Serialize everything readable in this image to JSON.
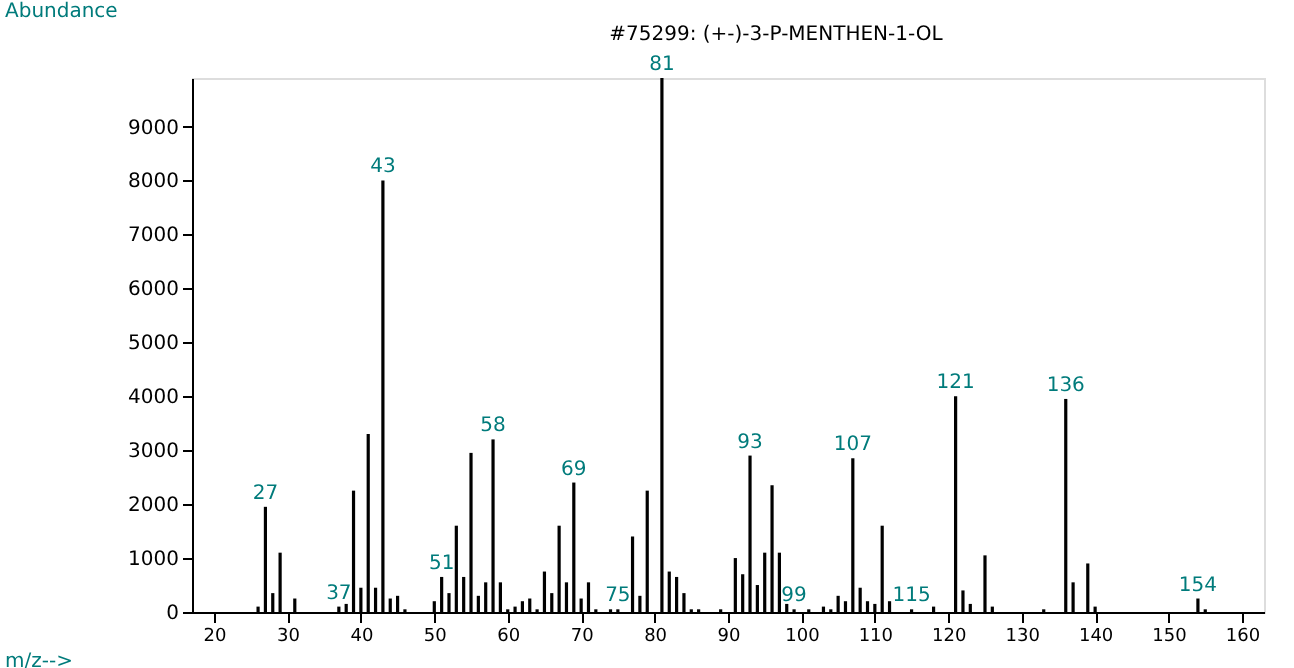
{
  "chart_data": {
    "type": "bar",
    "title": "#75299: (+-)-3-P-MENTHEN-1-OL",
    "xlabel": "m/z-->",
    "ylabel": "Abundance",
    "color": "#000000",
    "x": [
      26,
      27,
      28,
      29,
      31,
      37,
      38,
      39,
      40,
      41,
      42,
      43,
      44,
      45,
      46,
      50,
      51,
      52,
      53,
      54,
      55,
      56,
      57,
      58,
      59,
      60,
      61,
      62,
      63,
      64,
      65,
      66,
      67,
      68,
      69,
      70,
      71,
      72,
      74,
      75,
      77,
      78,
      79,
      81,
      82,
      83,
      84,
      85,
      86,
      89,
      91,
      92,
      93,
      94,
      95,
      96,
      97,
      98,
      99,
      101,
      103,
      104,
      105,
      106,
      107,
      108,
      109,
      110,
      111,
      112,
      115,
      118,
      121,
      122,
      123,
      125,
      126,
      133,
      136,
      137,
      139,
      140,
      154,
      155
    ],
    "values": [
      100,
      1950,
      350,
      1100,
      250,
      100,
      150,
      2250,
      450,
      3300,
      450,
      8000,
      250,
      300,
      50,
      200,
      650,
      350,
      1600,
      650,
      2950,
      300,
      550,
      3200,
      550,
      50,
      100,
      200,
      250,
      50,
      750,
      350,
      1600,
      550,
      2400,
      250,
      550,
      50,
      50,
      50,
      1400,
      300,
      2250,
      9900,
      750,
      650,
      350,
      50,
      50,
      50,
      1000,
      700,
      2900,
      500,
      1100,
      2350,
      1100,
      150,
      50,
      50,
      100,
      50,
      300,
      200,
      2850,
      450,
      200,
      150,
      1600,
      200,
      50,
      100,
      4000,
      400,
      150,
      1050,
      100,
      50,
      3950,
      550,
      900,
      100,
      250,
      50
    ],
    "annotations": [
      {
        "text": "27",
        "x": 27,
        "y": 1950
      },
      {
        "text": "37",
        "x": 37,
        "y": 100
      },
      {
        "text": "43",
        "x": 43,
        "y": 8000
      },
      {
        "text": "51",
        "x": 51,
        "y": 650
      },
      {
        "text": "58",
        "x": 58,
        "y": 3200
      },
      {
        "text": "69",
        "x": 69,
        "y": 2400
      },
      {
        "text": "75",
        "x": 75,
        "y": 50
      },
      {
        "text": "81",
        "x": 81,
        "y": 9900
      },
      {
        "text": "93",
        "x": 93,
        "y": 2900
      },
      {
        "text": "99",
        "x": 99,
        "y": 50
      },
      {
        "text": "107",
        "x": 107,
        "y": 2850
      },
      {
        "text": "115",
        "x": 115,
        "y": 50
      },
      {
        "text": "121",
        "x": 121,
        "y": 4000
      },
      {
        "text": "136",
        "x": 136,
        "y": 3950
      },
      {
        "text": "154",
        "x": 154,
        "y": 250
      }
    ],
    "xlim": [
      17,
      163
    ],
    "ylim": [
      0,
      9900
    ],
    "xticks": [
      20,
      30,
      40,
      50,
      60,
      70,
      80,
      90,
      100,
      110,
      120,
      130,
      140,
      150,
      160
    ],
    "yticks": [
      0,
      1000,
      2000,
      3000,
      4000,
      5000,
      6000,
      7000,
      8000,
      9000
    ],
    "grid": false
  }
}
